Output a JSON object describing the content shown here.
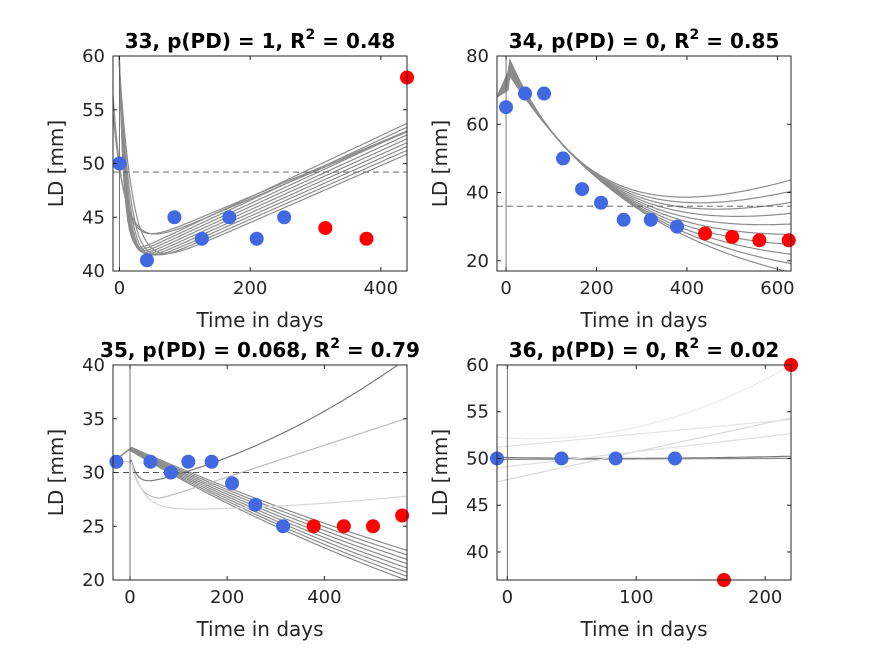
{
  "chart_data": [
    {
      "type": "scatter",
      "title_prefix": "33, p(PD) = 1, R",
      "title_sup": "2",
      "title_suffix": " = 0.48",
      "xlabel": "Time in days",
      "ylabel": "LD [mm]",
      "xlim": [
        -10,
        440
      ],
      "ylim": [
        40,
        60
      ],
      "xticks": [
        0,
        200,
        400
      ],
      "yticks": [
        40,
        45,
        50,
        55,
        60
      ],
      "baseline_y": 49.2,
      "vline_x": 440,
      "series": [
        {
          "color": "#4169E1",
          "points": [
            [
              0,
              50
            ],
            [
              42,
              41
            ],
            [
              84,
              45
            ],
            [
              126,
              43
            ],
            [
              168,
              45
            ],
            [
              210,
              43
            ],
            [
              252,
              45
            ]
          ]
        },
        {
          "color": "#FF0000",
          "points": [
            [
              315,
              44
            ],
            [
              378,
              43
            ],
            [
              440,
              58
            ]
          ]
        }
      ]
    },
    {
      "type": "scatter",
      "title_prefix": "34, p(PD) = 0, R",
      "title_sup": "2",
      "title_suffix": " = 0.85",
      "xlabel": "Time in days",
      "ylabel": "LD [mm]",
      "xlim": [
        -20,
        630
      ],
      "ylim": [
        17,
        80
      ],
      "xticks": [
        0,
        200,
        400,
        600
      ],
      "yticks": [
        20,
        40,
        60,
        80
      ],
      "baseline_y": 36,
      "vline_x": null,
      "series": [
        {
          "color": "#4169E1",
          "points": [
            [
              0,
              65
            ],
            [
              42,
              69
            ],
            [
              84,
              69
            ],
            [
              126,
              50
            ],
            [
              168,
              41
            ],
            [
              210,
              37
            ],
            [
              260,
              32
            ],
            [
              320,
              32
            ],
            [
              378,
              30
            ]
          ]
        },
        {
          "color": "#FF0000",
          "points": [
            [
              440,
              28
            ],
            [
              500,
              27
            ],
            [
              560,
              26
            ],
            [
              625,
              26
            ]
          ]
        }
      ]
    },
    {
      "type": "scatter",
      "title_prefix": "35, p(PD) = 0.068, R",
      "title_sup": "2",
      "title_suffix": " = 0.79",
      "xlabel": "Time in days",
      "ylabel": "LD [mm]",
      "xlim": [
        -35,
        570
      ],
      "ylim": [
        20,
        40
      ],
      "xticks": [
        0,
        200,
        400
      ],
      "yticks": [
        20,
        25,
        30,
        35,
        40
      ],
      "baseline_y": 30,
      "vline_x": null,
      "series": [
        {
          "color": "#4169E1",
          "points": [
            [
              -28,
              31
            ],
            [
              42,
              31
            ],
            [
              84,
              30
            ],
            [
              120,
              31
            ],
            [
              168,
              31
            ],
            [
              210,
              29
            ],
            [
              258,
              27
            ],
            [
              315,
              25
            ]
          ]
        },
        {
          "color": "#FF0000",
          "points": [
            [
              378,
              25
            ],
            [
              440,
              25
            ],
            [
              500,
              25
            ],
            [
              560,
              26
            ]
          ]
        }
      ]
    },
    {
      "type": "scatter",
      "title_prefix": "36, p(PD) = 0, R",
      "title_sup": "2",
      "title_suffix": " = 0.02",
      "xlabel": "Time in days",
      "ylabel": "LD [mm]",
      "xlim": [
        -8,
        220
      ],
      "ylim": [
        37,
        60
      ],
      "xticks": [
        0,
        100,
        200
      ],
      "yticks": [
        40,
        45,
        50,
        55,
        60
      ],
      "baseline_y": 60,
      "vline_x": 220,
      "series": [
        {
          "color": "#4169E1",
          "points": [
            [
              -8,
              50
            ],
            [
              42,
              50
            ],
            [
              84,
              50
            ],
            [
              130,
              50
            ]
          ]
        },
        {
          "color": "#FF0000",
          "points": [
            [
              168,
              37
            ],
            [
              220,
              60
            ]
          ]
        }
      ]
    }
  ]
}
